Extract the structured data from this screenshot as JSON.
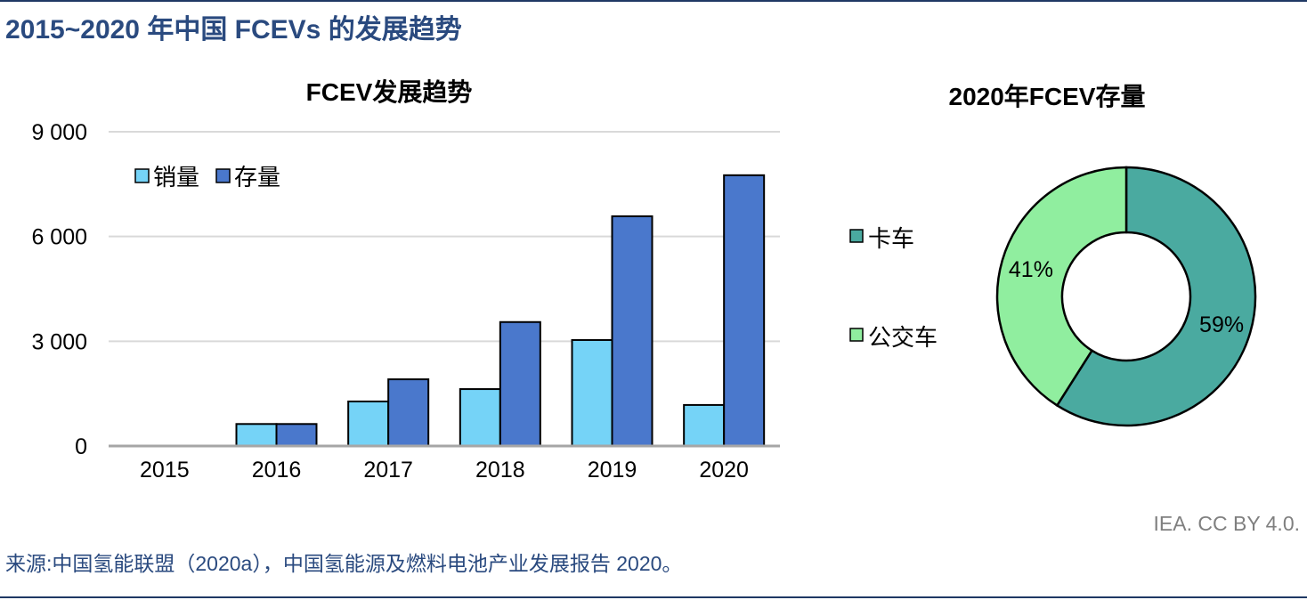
{
  "title": "2015~2020 年中国 FCEVs 的发展趋势",
  "source": "来源:中国氢能联盟（2020a），中国氢能源及燃料电池产业发展报告 2020。",
  "license": "IEA. CC BY 4.0.",
  "chart_data": [
    {
      "type": "bar",
      "title": "FCEV发展趋势",
      "categories": [
        "2015",
        "2016",
        "2017",
        "2018",
        "2019",
        "2020"
      ],
      "series": [
        {
          "name": "销量",
          "color": "#75d3f7",
          "values": [
            10,
            630,
            1275,
            1630,
            3035,
            1175
          ]
        },
        {
          "name": "存量",
          "color": "#4a78cc",
          "values": [
            10,
            630,
            1910,
            3550,
            6580,
            7755
          ]
        }
      ],
      "ylim": [
        0,
        9000
      ],
      "yticks": [
        0,
        3000,
        6000,
        9000
      ],
      "ytick_labels": [
        "0",
        "3 000",
        "6 000",
        "9 000"
      ],
      "grid": true,
      "legend": "top-left"
    },
    {
      "type": "pie",
      "title": "2020年FCEV存量",
      "labels": [
        "卡车",
        "公交车"
      ],
      "values": [
        59,
        41
      ],
      "value_labels": [
        "59%",
        "41%"
      ],
      "colors": [
        "#4aaaa0",
        "#90ee9f"
      ],
      "legend": "left"
    }
  ]
}
